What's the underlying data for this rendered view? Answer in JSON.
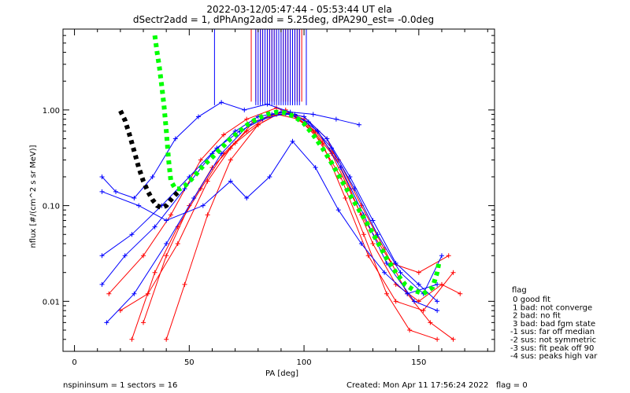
{
  "chart_data": {
    "type": "line",
    "title": "2022-03-12/05:47:44 - 05:53:44 UT ela",
    "subtitle": "dSectr2add = 1, dPhAng2add = 5.25deg, dPA290_est=  -0.0deg",
    "xlabel": "PA [deg]",
    "ylabel": "nflux [#/(cm^2 s sr MeV)]",
    "xlim": [
      -5,
      183
    ],
    "ylim": [
      0.003,
      7
    ],
    "yscale": "log",
    "x_ticks": [
      0,
      50,
      100,
      150
    ],
    "y_ticks": [
      0.01,
      0.1,
      1.0
    ],
    "y_tick_labels": [
      "0.01",
      "0.10",
      "1.00"
    ],
    "series": [
      {
        "color": "#000000",
        "style": "dotted-thick",
        "points": [
          [
            20,
            0.98
          ],
          [
            22,
            0.78
          ],
          [
            24,
            0.55
          ],
          [
            26,
            0.37
          ],
          [
            28,
            0.25
          ],
          [
            30,
            0.18
          ],
          [
            32,
            0.14
          ],
          [
            34,
            0.115
          ],
          [
            36,
            0.1
          ],
          [
            38,
            0.095
          ],
          [
            40,
            0.1
          ],
          [
            42,
            0.115
          ],
          [
            44,
            0.13
          ],
          [
            46,
            0.145
          ]
        ]
      },
      {
        "color": "#00ff00",
        "style": "dotted-thick",
        "points": [
          [
            35,
            6
          ],
          [
            36,
            4
          ],
          [
            37,
            2.8
          ],
          [
            38,
            1.8
          ],
          [
            39,
            1.1
          ],
          [
            40,
            0.6
          ],
          [
            41,
            0.3
          ],
          [
            42,
            0.18
          ],
          [
            44,
            0.15
          ],
          [
            46,
            0.15
          ],
          [
            48,
            0.16
          ],
          [
            52,
            0.2
          ],
          [
            56,
            0.26
          ],
          [
            60,
            0.32
          ],
          [
            64,
            0.4
          ],
          [
            68,
            0.5
          ],
          [
            72,
            0.6
          ],
          [
            76,
            0.72
          ],
          [
            80,
            0.82
          ],
          [
            84,
            0.9
          ],
          [
            88,
            0.95
          ],
          [
            92,
            0.93
          ],
          [
            96,
            0.85
          ],
          [
            100,
            0.72
          ],
          [
            104,
            0.55
          ],
          [
            108,
            0.4
          ],
          [
            112,
            0.28
          ],
          [
            116,
            0.19
          ],
          [
            120,
            0.13
          ],
          [
            124,
            0.09
          ],
          [
            128,
            0.062
          ],
          [
            132,
            0.042
          ],
          [
            136,
            0.028
          ],
          [
            140,
            0.02
          ],
          [
            144,
            0.015
          ],
          [
            148,
            0.013
          ],
          [
            152,
            0.012
          ],
          [
            156,
            0.014
          ],
          [
            158,
            0.02
          ],
          [
            159,
            0.027
          ]
        ]
      }
    ],
    "sample_curves": {
      "red": [
        [
          [
            25,
            0.004
          ],
          [
            35,
            0.02
          ],
          [
            45,
            0.06
          ],
          [
            55,
            0.15
          ],
          [
            65,
            0.35
          ],
          [
            75,
            0.6
          ],
          [
            85,
            0.88
          ],
          [
            95,
            0.9
          ],
          [
            105,
            0.6
          ],
          [
            115,
            0.3
          ],
          [
            125,
            0.1
          ],
          [
            135,
            0.035
          ],
          [
            145,
            0.012
          ],
          [
            155,
            0.006
          ],
          [
            165,
            0.004
          ]
        ],
        [
          [
            30,
            0.006
          ],
          [
            40,
            0.03
          ],
          [
            50,
            0.1
          ],
          [
            60,
            0.25
          ],
          [
            70,
            0.45
          ],
          [
            80,
            0.7
          ],
          [
            90,
            0.95
          ],
          [
            100,
            0.85
          ],
          [
            110,
            0.5
          ],
          [
            120,
            0.15
          ],
          [
            130,
            0.04
          ],
          [
            140,
            0.015
          ],
          [
            150,
            0.01
          ],
          [
            160,
            0.015
          ],
          [
            168,
            0.012
          ]
        ],
        [
          [
            20,
            0.008
          ],
          [
            32,
            0.012
          ],
          [
            45,
            0.04
          ],
          [
            58,
            0.18
          ],
          [
            68,
            0.4
          ],
          [
            78,
            0.75
          ],
          [
            88,
            0.9
          ],
          [
            98,
            0.8
          ],
          [
            108,
            0.45
          ],
          [
            118,
            0.12
          ],
          [
            128,
            0.03
          ],
          [
            140,
            0.01
          ],
          [
            152,
            0.008
          ],
          [
            165,
            0.02
          ]
        ],
        [
          [
            15,
            0.012
          ],
          [
            30,
            0.03
          ],
          [
            42,
            0.08
          ],
          [
            55,
            0.3
          ],
          [
            65,
            0.55
          ],
          [
            75,
            0.8
          ],
          [
            88,
            1.05
          ],
          [
            100,
            0.8
          ],
          [
            112,
            0.35
          ],
          [
            125,
            0.08
          ],
          [
            138,
            0.025
          ],
          [
            150,
            0.02
          ],
          [
            163,
            0.03
          ]
        ],
        [
          [
            40,
            0.004
          ],
          [
            48,
            0.015
          ],
          [
            58,
            0.08
          ],
          [
            68,
            0.3
          ],
          [
            80,
            0.7
          ],
          [
            92,
            1.0
          ],
          [
            104,
            0.6
          ],
          [
            116,
            0.2
          ],
          [
            126,
            0.05
          ],
          [
            136,
            0.012
          ],
          [
            146,
            0.005
          ],
          [
            158,
            0.004
          ]
        ]
      ],
      "blue": [
        [
          [
            12,
            0.03
          ],
          [
            25,
            0.05
          ],
          [
            38,
            0.1
          ],
          [
            50,
            0.2
          ],
          [
            62,
            0.4
          ],
          [
            72,
            0.6
          ],
          [
            82,
            0.8
          ],
          [
            92,
            0.92
          ],
          [
            102,
            0.75
          ],
          [
            112,
            0.4
          ],
          [
            122,
            0.15
          ],
          [
            132,
            0.05
          ],
          [
            142,
            0.02
          ],
          [
            152,
            0.012
          ],
          [
            160,
            0.03
          ]
        ],
        [
          [
            12,
            0.015
          ],
          [
            22,
            0.03
          ],
          [
            35,
            0.06
          ],
          [
            48,
            0.15
          ],
          [
            60,
            0.35
          ],
          [
            70,
            0.6
          ],
          [
            80,
            0.85
          ],
          [
            90,
            0.95
          ],
          [
            100,
            0.85
          ],
          [
            110,
            0.5
          ],
          [
            120,
            0.2
          ],
          [
            130,
            0.07
          ],
          [
            140,
            0.025
          ],
          [
            150,
            0.015
          ],
          [
            158,
            0.01
          ]
        ],
        [
          [
            14,
            0.006
          ],
          [
            26,
            0.012
          ],
          [
            40,
            0.04
          ],
          [
            52,
            0.12
          ],
          [
            64,
            0.35
          ],
          [
            76,
            0.7
          ],
          [
            86,
            0.9
          ],
          [
            96,
            0.9
          ],
          [
            106,
            0.6
          ],
          [
            116,
            0.25
          ],
          [
            126,
            0.08
          ],
          [
            136,
            0.025
          ],
          [
            148,
            0.01
          ],
          [
            158,
            0.008
          ]
        ],
        [
          [
            12,
            0.2
          ],
          [
            18,
            0.14
          ],
          [
            26,
            0.12
          ],
          [
            34,
            0.2
          ],
          [
            44,
            0.5
          ],
          [
            54,
            0.85
          ],
          [
            64,
            1.2
          ],
          [
            74,
            1.0
          ],
          [
            84,
            1.15
          ],
          [
            94,
            0.95
          ],
          [
            104,
            0.9
          ],
          [
            114,
            0.8
          ],
          [
            124,
            0.7
          ]
        ],
        [
          [
            12,
            0.14
          ],
          [
            28,
            0.1
          ],
          [
            40,
            0.07
          ],
          [
            56,
            0.1
          ],
          [
            68,
            0.18
          ],
          [
            75,
            0.12
          ],
          [
            85,
            0.2
          ],
          [
            95,
            0.47
          ],
          [
            105,
            0.25
          ],
          [
            115,
            0.09
          ],
          [
            125,
            0.04
          ],
          [
            135,
            0.02
          ],
          [
            145,
            0.012
          ],
          [
            158,
            0.015
          ]
        ]
      ]
    },
    "spikes": {
      "red": [
        77,
        79,
        81,
        82,
        83,
        84,
        85,
        86,
        87,
        88,
        89,
        90,
        91,
        92,
        93,
        94,
        95,
        96,
        97,
        98,
        99
      ],
      "blue": [
        61,
        79,
        80,
        81,
        82,
        83,
        84,
        85,
        86,
        87,
        88,
        89,
        90,
        91,
        92,
        93,
        94,
        95,
        96,
        97,
        98,
        101
      ]
    },
    "legend": {
      "title": "flag",
      "items": [
        " 0 good fit",
        " 1 bad: not converge",
        " 2 bad: no fit",
        " 3 bad: bad fgm state",
        "-1 sus: far off median",
        "-2 sus: not symmetric",
        "-3 sus: fit peak off 90",
        "-4 sus: peaks high var"
      ]
    },
    "footer": {
      "left": "nspininsum =  1  sectors = 16",
      "right": "Created: Mon Apr 11 17:56:24 2022   flag = 0"
    }
  }
}
